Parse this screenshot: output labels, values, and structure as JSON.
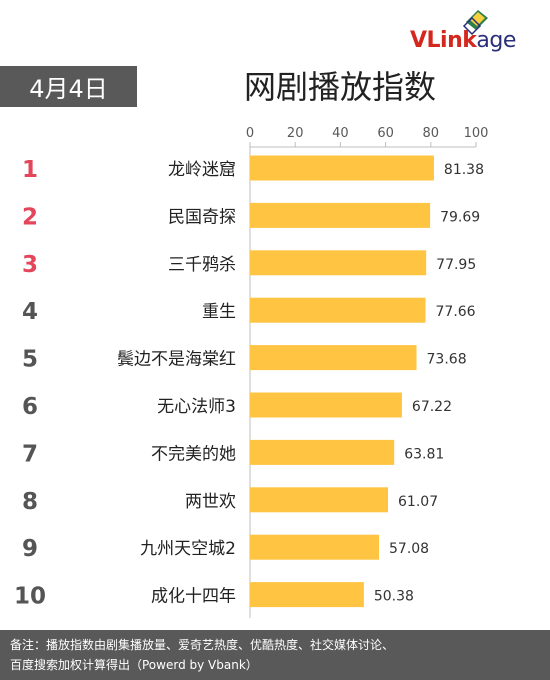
{
  "header": {
    "date": "4月4日",
    "title": "网剧播放指数",
    "logo": {
      "brand": "VLink",
      "suffix": "age"
    }
  },
  "colors": {
    "bar": "#fec442",
    "rank_top": "#e3465a",
    "rank_other": "#555555",
    "panel": "#595959"
  },
  "chart_data": {
    "type": "bar",
    "orientation": "horizontal",
    "categories": [
      "龙岭迷窟",
      "民国奇探",
      "三千鸦杀",
      "重生",
      "鬓边不是海棠红",
      "无心法师3",
      "不完美的她",
      "两世欢",
      "九州天空城2",
      "成化十四年"
    ],
    "ranks": [
      "1",
      "2",
      "3",
      "4",
      "5",
      "6",
      "7",
      "8",
      "9",
      "10"
    ],
    "values": [
      81.38,
      79.69,
      77.95,
      77.66,
      73.68,
      67.22,
      63.81,
      61.07,
      57.08,
      50.38
    ],
    "value_labels": [
      "81.38",
      "79.69",
      "77.95",
      "77.66",
      "73.68",
      "67.22",
      "63.81",
      "61.07",
      "57.08",
      "50.38"
    ],
    "xlim": [
      0,
      100
    ],
    "x_ticks": [
      "0",
      "20",
      "40",
      "60",
      "80",
      "100"
    ],
    "axis_position": "top",
    "grid": false,
    "legend": "none"
  },
  "footer": {
    "note_line1": "备注：播放指数由剧集播放量、爱奇艺热度、优酷热度、社交媒体讨论、",
    "note_line2": "百度搜索加权计算得出（Powerd by Vbank）"
  }
}
